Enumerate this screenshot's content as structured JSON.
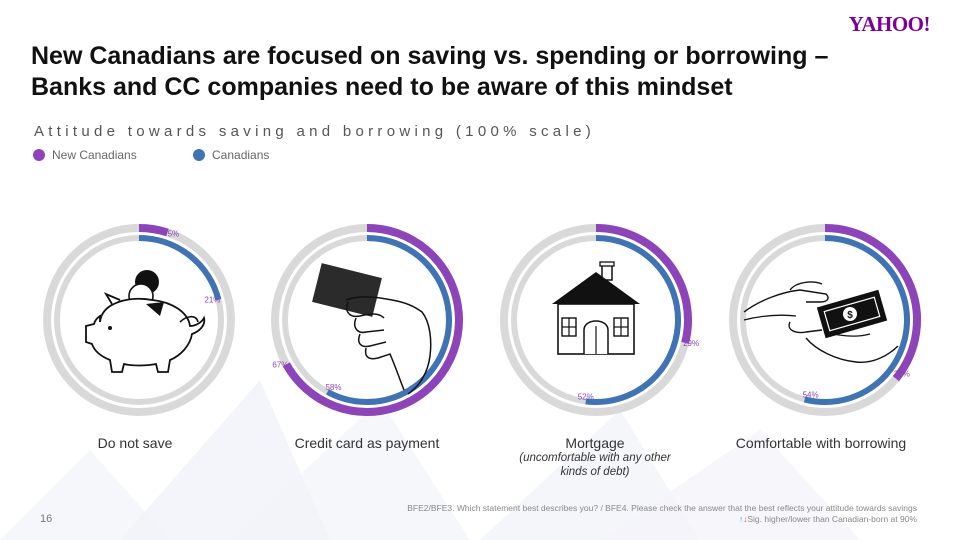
{
  "brand": {
    "logo_text": "YAHOO!"
  },
  "title_line1": "New Canadians are focused on saving vs. spending or borrowing –",
  "title_line2": "Banks and CC companies need to be aware of this mindset",
  "subtitle": "Attitude towards saving and borrowing   (100% scale)",
  "colors": {
    "new_canadians": "#8c44b8",
    "canadians": "#3f73b3",
    "track": "#d9d9d9",
    "label": "#8c44b8"
  },
  "chart_data": {
    "type": "donut",
    "scale": "100%",
    "legend": [
      {
        "name": "New Canadians",
        "color": "#8c44b8"
      },
      {
        "name": "Canadians",
        "color": "#3f73b3"
      }
    ],
    "charts": [
      {
        "category": "Do not save",
        "subcaption": "",
        "series": [
          {
            "name": "New Canadians",
            "value": 5,
            "label": "5%"
          },
          {
            "name": "Canadians",
            "value": 21,
            "label": "21%"
          }
        ]
      },
      {
        "category": "Credit card as payment",
        "subcaption": "",
        "series": [
          {
            "name": "New Canadians",
            "value": 67,
            "label": "67%"
          },
          {
            "name": "Canadians",
            "value": 58,
            "label": "58%"
          }
        ]
      },
      {
        "category": "Mortgage",
        "subcaption": "(uncomfortable with any other kinds of debt)",
        "series": [
          {
            "name": "New Canadians",
            "value": 29,
            "label": "29%"
          },
          {
            "name": "Canadians",
            "value": 52,
            "label": "52%"
          }
        ]
      },
      {
        "category": "Comfortable with borrowing",
        "subcaption": "",
        "series": [
          {
            "name": "New Canadians",
            "value": 36,
            "label": "36%"
          },
          {
            "name": "Canadians",
            "value": 54,
            "label": "54%"
          }
        ]
      }
    ]
  },
  "captions": [
    {
      "title": "Do not save",
      "sub": ""
    },
    {
      "title": "Credit card as payment",
      "sub": ""
    },
    {
      "title": "Mortgage",
      "sub": "(uncomfortable with any other kinds of debt)"
    },
    {
      "title": "Comfortable with borrowing",
      "sub": ""
    }
  ],
  "icons": [
    "piggy-bank-icon",
    "credit-card-hand-icon",
    "house-icon",
    "money-exchange-icon"
  ],
  "page_number": "16",
  "footnote_line1": "BFE2/BFE3. Which statement best describes you?   /   BFE4. Please check the answer that the best reflects your attitude towards savings",
  "footnote_line2": "Sig. higher/lower than Canadian-born at 90%"
}
